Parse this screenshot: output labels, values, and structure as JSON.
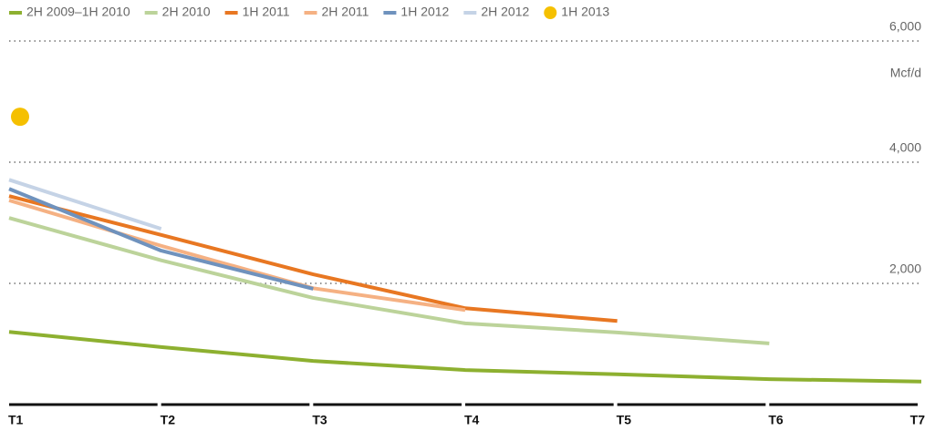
{
  "chart_data": {
    "type": "line",
    "y_label": "Mcf/d",
    "categories": [
      "T1",
      "T2",
      "T3",
      "T4",
      "T5",
      "T6",
      "T7"
    ],
    "series": [
      {
        "name": "2H 2009–1H 2010",
        "color": "#8db030",
        "values": [
          1200,
          950,
          720,
          570,
          500,
          420,
          380
        ]
      },
      {
        "name": "2H 2010",
        "color": "#bcd39a",
        "values": [
          3080,
          2380,
          1760,
          1340,
          1190,
          1010,
          null
        ]
      },
      {
        "name": "1H 2011",
        "color": "#e87722",
        "values": [
          3440,
          2800,
          2150,
          1590,
          1380,
          null,
          null
        ]
      },
      {
        "name": "2H 2011",
        "color": "#f5b183",
        "values": [
          3370,
          2620,
          1920,
          1560,
          null,
          null,
          null
        ]
      },
      {
        "name": "1H 2012",
        "color": "#6f92bd",
        "values": [
          3560,
          2540,
          1910,
          null,
          null,
          null,
          null
        ]
      },
      {
        "name": "2H 2012",
        "color": "#c5d3e6",
        "values": [
          3710,
          2900,
          null,
          null,
          null,
          null,
          null
        ]
      },
      {
        "name": "1H 2013",
        "color": "#f5c000",
        "marker": "circle",
        "values": [
          4750,
          null,
          null,
          null,
          null,
          null,
          null
        ]
      }
    ],
    "ylim": [
      0,
      6000
    ],
    "yticks": [
      {
        "value": 2000,
        "label": "2,000"
      },
      {
        "value": 4000,
        "label": "4,000"
      },
      {
        "value": 6000,
        "label": "6,000"
      }
    ],
    "grid": true,
    "legend": "top"
  }
}
